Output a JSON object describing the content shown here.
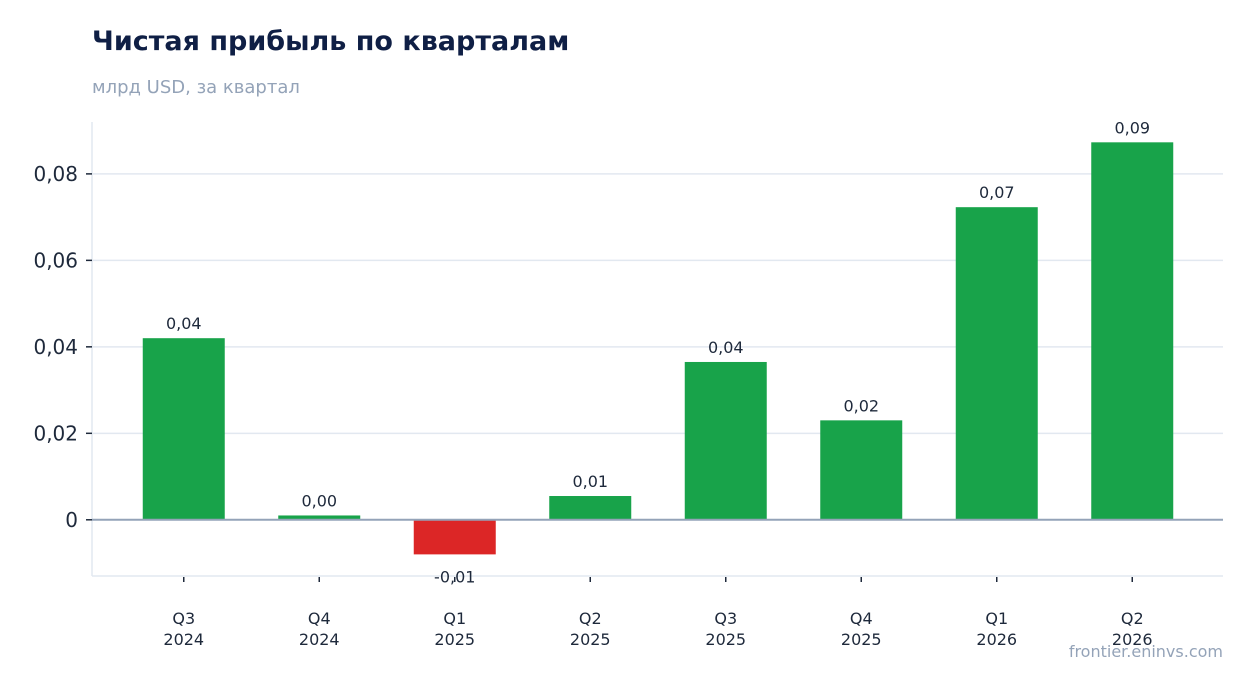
{
  "chart_data": {
    "type": "bar",
    "title": "Чистая прибыль по кварталам",
    "subtitle": "млрд USD, за квартал",
    "categories": [
      [
        "Q3",
        "2024"
      ],
      [
        "Q4",
        "2024"
      ],
      [
        "Q1",
        "2025"
      ],
      [
        "Q2",
        "2025"
      ],
      [
        "Q3",
        "2025"
      ],
      [
        "Q4",
        "2025"
      ],
      [
        "Q1",
        "2026"
      ],
      [
        "Q2",
        "2026"
      ]
    ],
    "values": [
      0.042,
      0.001,
      -0.008,
      0.0055,
      0.0365,
      0.023,
      0.0723,
      0.0873
    ],
    "data_labels": [
      "0,04",
      "0,00",
      "-0,01",
      "0,01",
      "0,04",
      "0,02",
      "0,07",
      "0,09"
    ],
    "yticks": [
      0,
      0.02,
      0.04,
      0.06,
      0.08
    ],
    "ytick_labels": [
      "0",
      "0,02",
      "0,04",
      "0,06",
      "0,08"
    ],
    "ylim": [
      -0.013,
      0.092
    ],
    "grid": true,
    "xlabel": "",
    "ylabel": "",
    "colors": {
      "positive": "#18a34a",
      "negative": "#dc2626",
      "grid": "#e2e8f0",
      "zero_line": "#94a3b8"
    }
  },
  "watermark": "frontier.eninvs.com"
}
